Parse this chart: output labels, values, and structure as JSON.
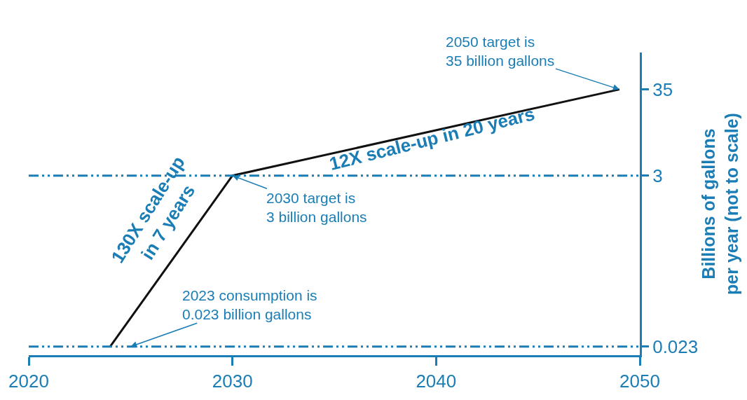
{
  "chart_data": {
    "type": "line",
    "x": [
      2024,
      2030,
      2049
    ],
    "series": [
      {
        "color": "#111111",
        "values": [
          0.023,
          3,
          35
        ]
      }
    ],
    "xlim": [
      2020,
      2050
    ],
    "xticks": [
      2020,
      2030,
      2040,
      2050
    ],
    "ylim": [
      0.018,
      100
    ],
    "yticks": [
      0.023,
      3,
      35
    ],
    "log": true,
    "ylabel": "Billions of gallons\nper year (not to scale)",
    "ref_lines": [
      {
        "axis": "y",
        "value": 3,
        "color": "#1a7db5",
        "line_style": "dashed"
      },
      {
        "axis": "y",
        "value": 0.023,
        "color": "#1a7db5",
        "line_style": "dashed"
      }
    ],
    "annotations": [
      {
        "text": "2050 target is\n35 billion gallons",
        "x": 2049,
        "y": 35
      },
      {
        "text": "2030 target is\n3 billion gallons",
        "x": 2030,
        "y": 3
      },
      {
        "text": "2023 consumption is\n0.023 billion gallons",
        "x": 2025,
        "y": 0.023
      },
      "12X scale-up in 20 years",
      "130X scale-up\nin 7 years"
    ],
    "marker": "none",
    "line_style": "solid"
  }
}
